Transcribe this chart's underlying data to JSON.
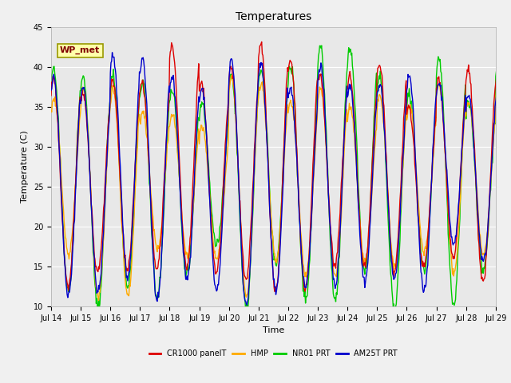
{
  "title": "Temperatures",
  "xlabel": "Time",
  "ylabel": "Temperature (C)",
  "ylim": [
    10,
    45
  ],
  "x_tick_labels": [
    "Jul 14",
    "Jul 15",
    "Jul 16",
    "Jul 17",
    "Jul 18",
    "Jul 19",
    "Jul 20",
    "Jul 21",
    "Jul 22",
    "Jul 23",
    "Jul 24",
    "Jul 25",
    "Jul 26",
    "Jul 27",
    "Jul 28",
    "Jul 29"
  ],
  "yticks": [
    10,
    15,
    20,
    25,
    30,
    35,
    40,
    45
  ],
  "series": {
    "CR1000 panelT": {
      "color": "#dd0000",
      "lw": 1.0,
      "zorder": 4
    },
    "HMP": {
      "color": "#ffaa00",
      "lw": 1.0,
      "zorder": 3
    },
    "NR01 PRT": {
      "color": "#00cc00",
      "lw": 1.0,
      "zorder": 2
    },
    "AM25T PRT": {
      "color": "#0000cc",
      "lw": 1.0,
      "zorder": 5
    }
  },
  "annotation": {
    "text": "WP_met",
    "fontsize": 8,
    "color": "#800000",
    "bbox_facecolor": "#ffffaa",
    "bbox_edgecolor": "#999900",
    "fontweight": "bold"
  },
  "bg_color": "#e8e8e8",
  "grid_color": "#ffffff",
  "fig_facecolor": "#f0f0f0",
  "title_fontsize": 10,
  "label_fontsize": 8,
  "tick_fontsize": 7,
  "legend_fontsize": 7
}
